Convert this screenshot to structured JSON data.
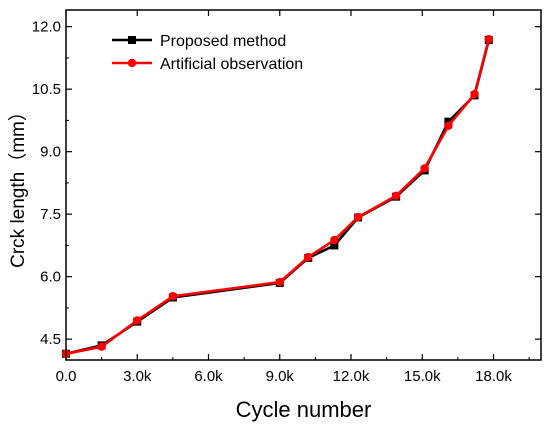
{
  "chart_data": {
    "type": "line",
    "xlabel": "Cycle number",
    "ylabel": "Crck length（mm）",
    "xlim": [
      0,
      20000
    ],
    "ylim": [
      4.0,
      12.4
    ],
    "x_ticks": [
      0,
      3000,
      6000,
      9000,
      12000,
      15000,
      18000
    ],
    "x_tick_labels": [
      "0.0",
      "3.0k",
      "6.0k",
      "9.0k",
      "12.0k",
      "15.0k",
      "18.0k"
    ],
    "y_ticks": [
      4.5,
      6.0,
      7.5,
      9.0,
      10.5,
      12.0
    ],
    "y_tick_labels": [
      "4.5",
      "6.0",
      "7.5",
      "9.0",
      "10.5",
      "12.0"
    ],
    "grid": false,
    "legend_position": "top-left",
    "series": [
      {
        "name": "Proposed method",
        "color": "#000000",
        "marker": "square",
        "x": [
          0,
          1500,
          3000,
          4500,
          9000,
          10200,
          11300,
          12300,
          13900,
          15100,
          16100,
          17200,
          17800
        ],
        "y": [
          4.15,
          4.35,
          4.92,
          5.5,
          5.85,
          6.45,
          6.75,
          7.42,
          7.92,
          8.55,
          9.72,
          10.35,
          11.68
        ]
      },
      {
        "name": "Artificial observation",
        "color": "#ff0000",
        "marker": "circle",
        "x": [
          0,
          1500,
          3000,
          4500,
          9000,
          10200,
          11300,
          12300,
          13900,
          15100,
          16100,
          17200,
          17800
        ],
        "y": [
          4.15,
          4.32,
          4.95,
          5.53,
          5.87,
          6.47,
          6.88,
          7.43,
          7.94,
          8.6,
          9.62,
          10.38,
          11.7
        ]
      }
    ]
  }
}
